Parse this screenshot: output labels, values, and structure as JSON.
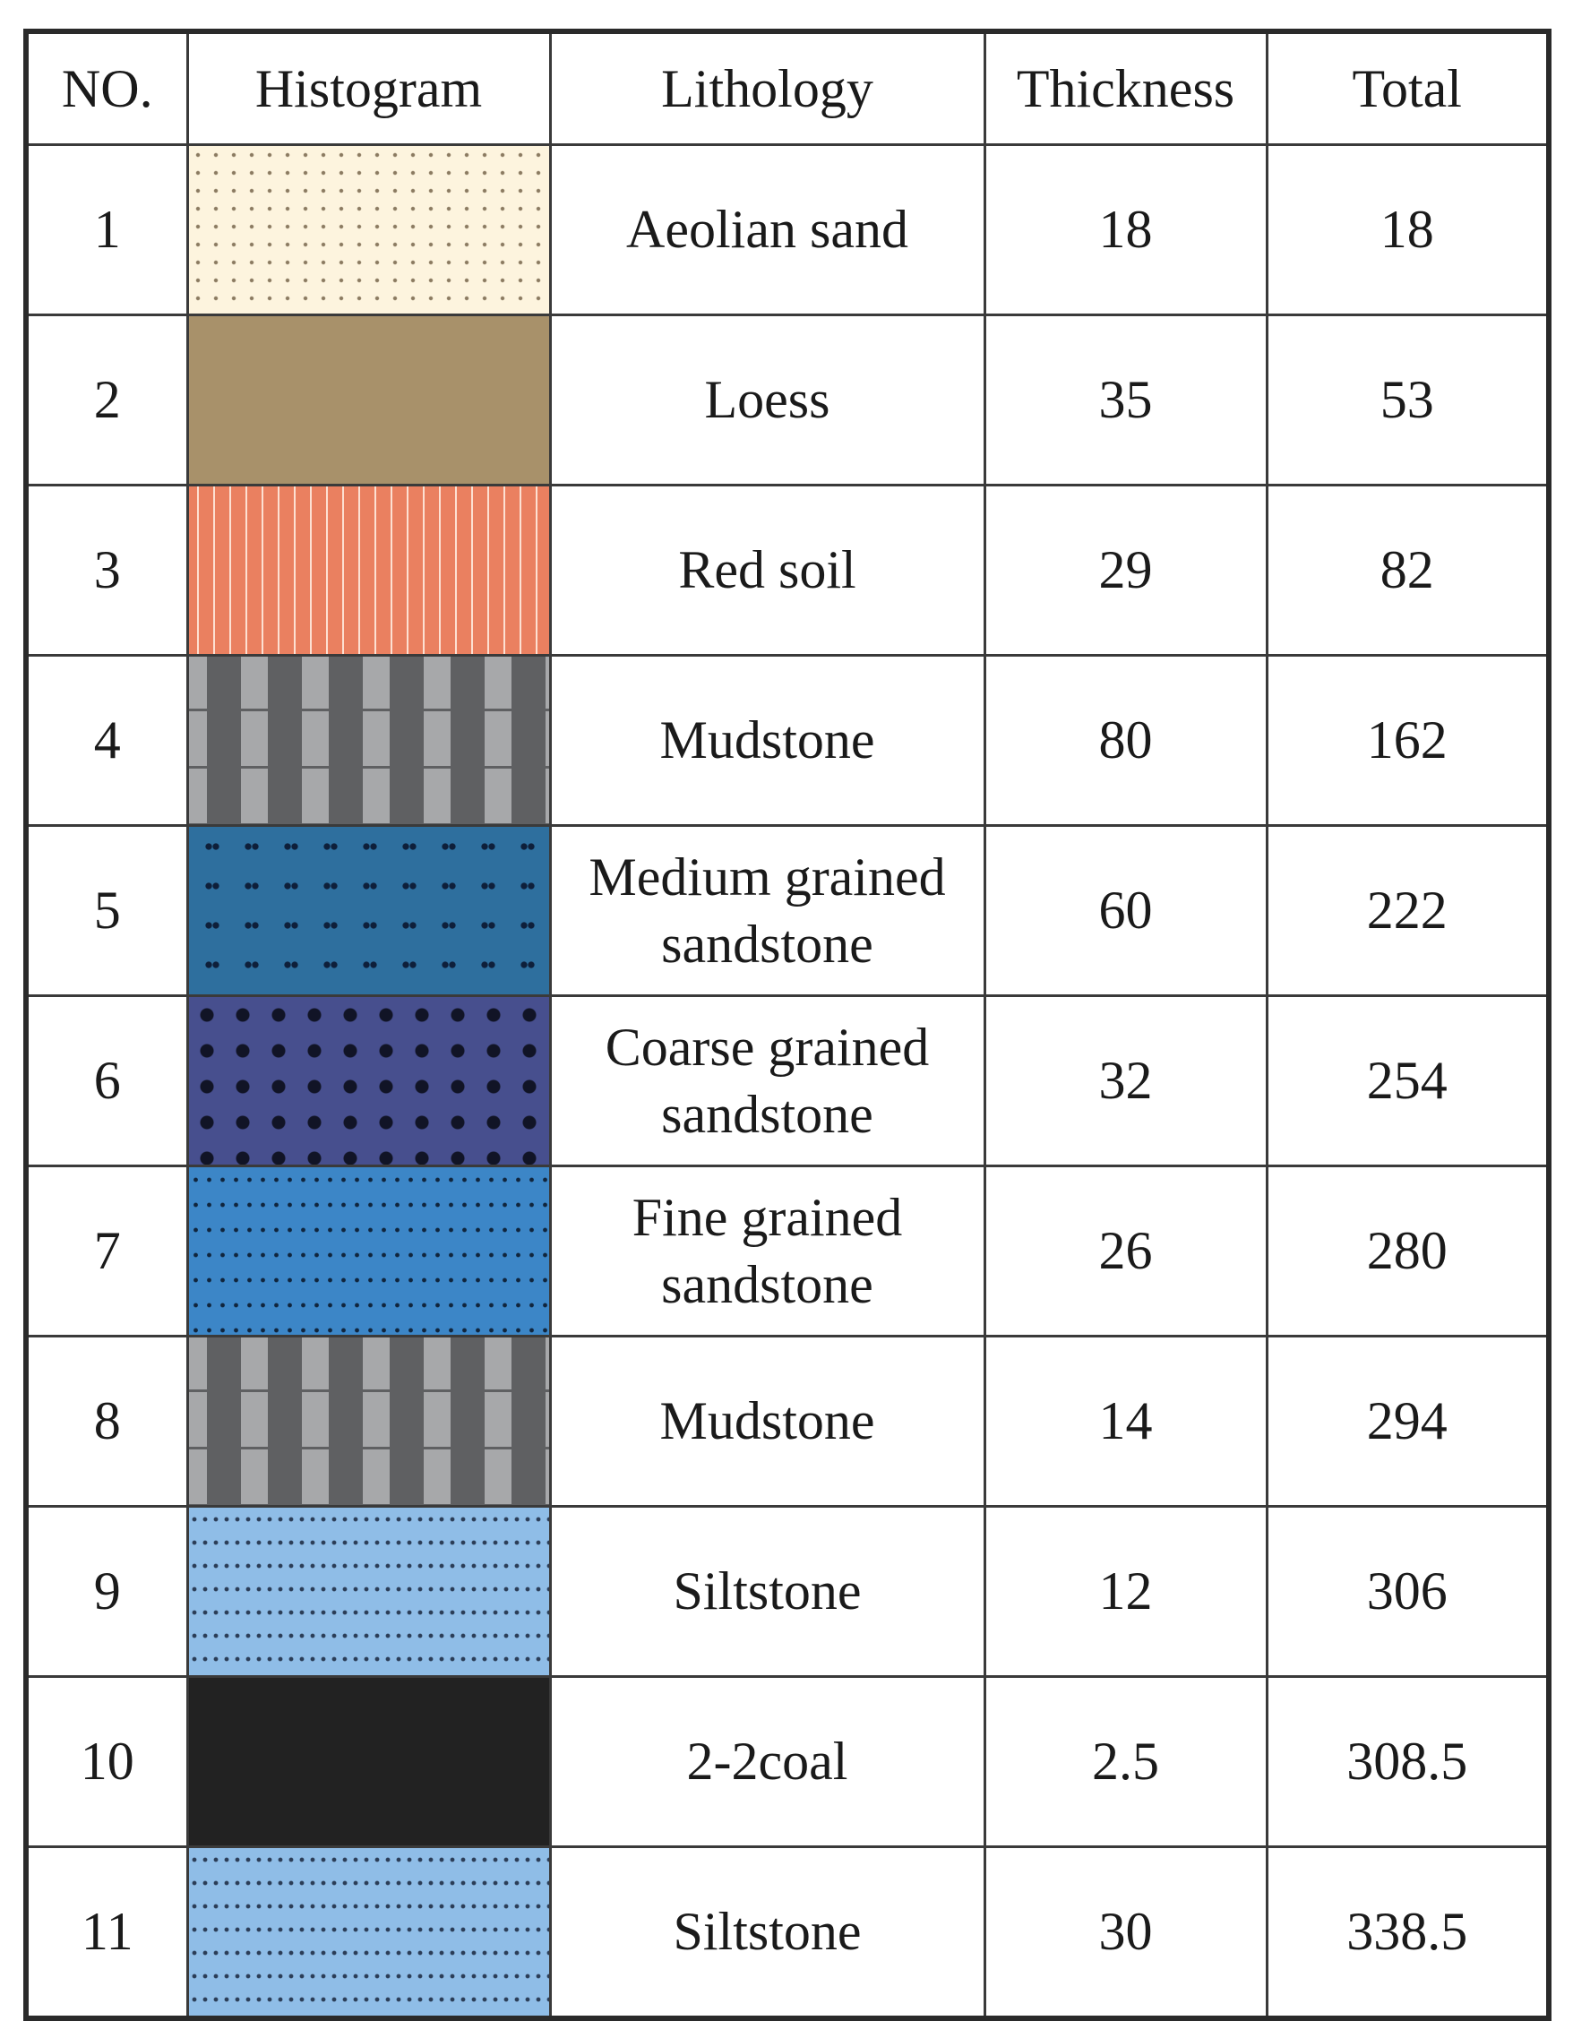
{
  "headers": {
    "no": "NO.",
    "histogram": "Histogram",
    "lithology": "Lithology",
    "thickness": "Thickness",
    "total": "Total"
  },
  "rows": [
    {
      "no": "1",
      "lithology": "Aeolian sand",
      "thickness": "18",
      "total": "18",
      "pattern": "aeolian-sand-pattern",
      "color": "#fdf4de"
    },
    {
      "no": "2",
      "lithology": "Loess",
      "thickness": "35",
      "total": "53",
      "pattern": "loess-pattern",
      "color": "#fde3aa"
    },
    {
      "no": "3",
      "lithology": "Red soil",
      "thickness": "29",
      "total": "82",
      "pattern": "red-soil-pattern",
      "color": "#ea8060"
    },
    {
      "no": "4",
      "lithology": "Mudstone",
      "thickness": "80",
      "total": "162",
      "pattern": "mudstone-pattern",
      "color": "#a7a8aa"
    },
    {
      "no": "5",
      "lithology": "Medium grained sandstone",
      "thickness": "60",
      "total": "222",
      "pattern": "medium-grained-sandstone-pattern",
      "color": "#2e6f9e"
    },
    {
      "no": "6",
      "lithology": "Coarse grained sandstone",
      "thickness": "32",
      "total": "254",
      "pattern": "coarse-grained-sandstone-pattern",
      "color": "#474f8e"
    },
    {
      "no": "7",
      "lithology": "Fine grained sandstone",
      "thickness": "26",
      "total": "280",
      "pattern": "fine-grained-sandstone-pattern",
      "color": "#3c86c7"
    },
    {
      "no": "8",
      "lithology": "Mudstone",
      "thickness": "14",
      "total": "294",
      "pattern": "mudstone-pattern",
      "color": "#a7a8aa"
    },
    {
      "no": "9",
      "lithology": "Siltstone",
      "thickness": "12",
      "total": "306",
      "pattern": "siltstone-pattern",
      "color": "#8fbde7"
    },
    {
      "no": "10",
      "lithology": "2-2coal",
      "thickness": "2.5",
      "total": "308.5",
      "pattern": "coal-pattern",
      "color": "#222222"
    },
    {
      "no": "11",
      "lithology": "Siltstone",
      "thickness": "30",
      "total": "338.5",
      "pattern": "siltstone-pattern",
      "color": "#8fbde7"
    }
  ]
}
